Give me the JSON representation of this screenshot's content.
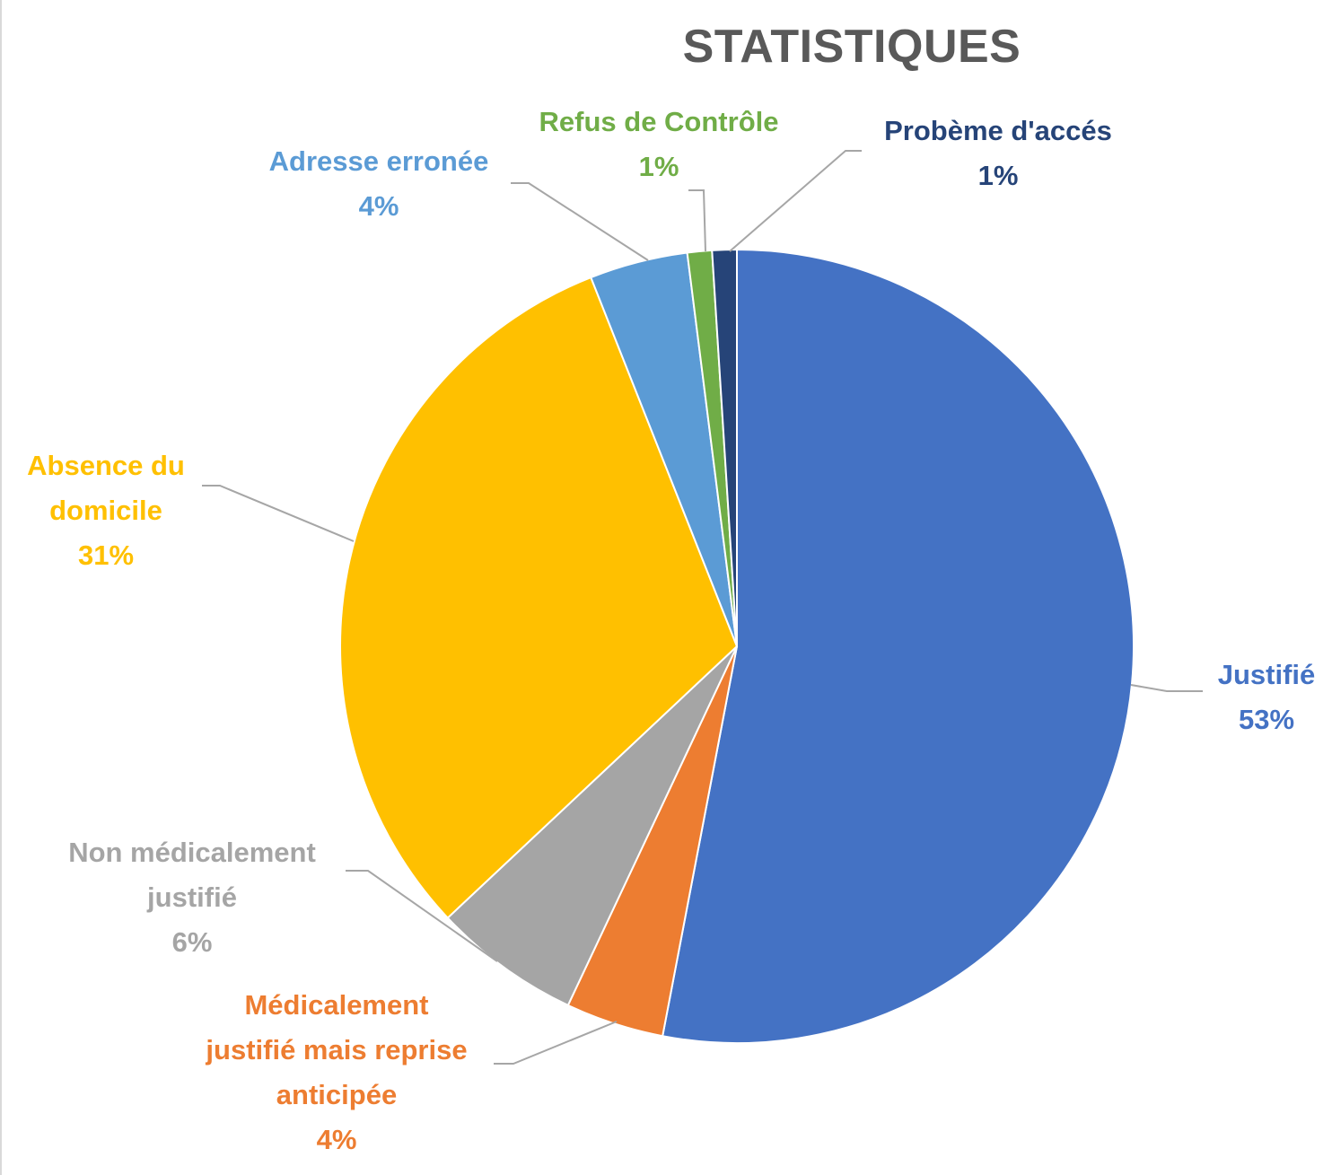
{
  "chart_data": {
    "type": "pie",
    "title": "STATISTIQUES",
    "slices": [
      {
        "label_lines": [
          "Justifié"
        ],
        "pct_label": "53%",
        "value": 53,
        "color": "#4472C4"
      },
      {
        "label_lines": [
          "Médicalement",
          "justifié mais reprise",
          "anticipée"
        ],
        "pct_label": "4%",
        "value": 4,
        "color": "#ED7D31"
      },
      {
        "label_lines": [
          "Non médicalement",
          "justifié"
        ],
        "pct_label": "6%",
        "value": 6,
        "color": "#A5A5A5"
      },
      {
        "label_lines": [
          "Absence du",
          "domicile"
        ],
        "pct_label": "31%",
        "value": 31,
        "color": "#FFC000"
      },
      {
        "label_lines": [
          "Adresse erronée"
        ],
        "pct_label": "4%",
        "value": 4,
        "color": "#5B9BD5"
      },
      {
        "label_lines": [
          "Refus de Contrôle"
        ],
        "pct_label": "1%",
        "value": 1,
        "color": "#70AD47"
      },
      {
        "label_lines": [
          "Probème d'accés"
        ],
        "pct_label": "1%",
        "value": 1,
        "color": "#264478"
      }
    ],
    "legend": "none",
    "data_labels": "outside with leader lines"
  }
}
